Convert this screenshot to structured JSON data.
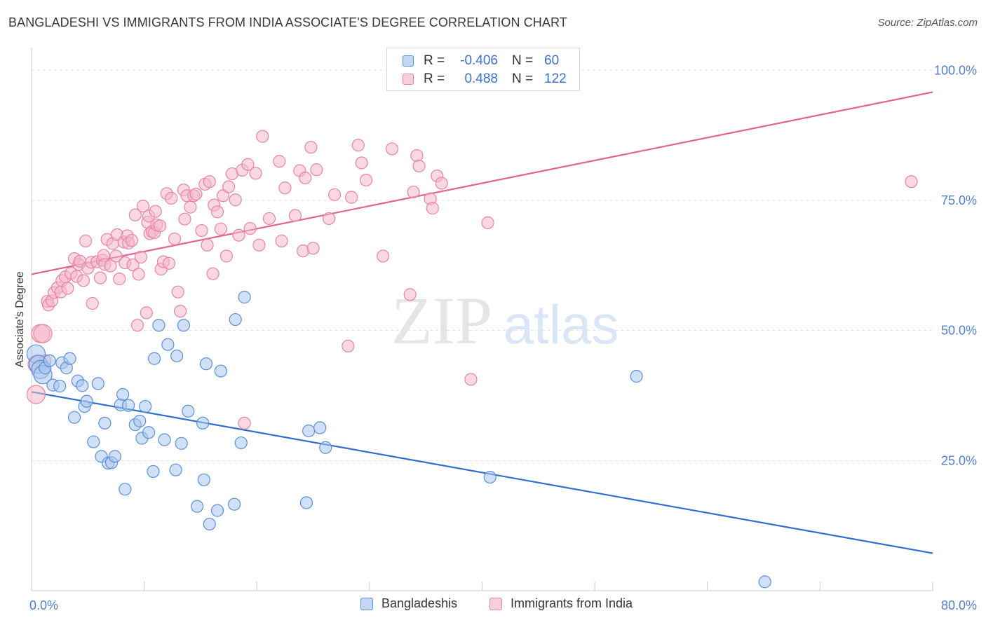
{
  "title": "BANGLADESHI VS IMMIGRANTS FROM INDIA ASSOCIATE'S DEGREE CORRELATION CHART",
  "source": "Source: ZipAtlas.com",
  "watermark": {
    "zip": "ZIP",
    "atlas": "atlas"
  },
  "colors": {
    "blue_fill": "#a9c6ee",
    "blue_stroke": "#5b8fd6",
    "blue_line": "#2f6fcc",
    "pink_fill": "#f4b8cb",
    "pink_stroke": "#e684a3",
    "pink_line": "#e0638e",
    "tick": "#4f7fc9",
    "grid": "#dde1e6"
  },
  "legend": {
    "rows": [
      {
        "r_label": "R =",
        "r_value": "-0.406",
        "n_label": "N =",
        "n_value": "60"
      },
      {
        "r_label": "R =",
        "r_value": "0.488",
        "n_label": "N =",
        "n_value": "122"
      }
    ]
  },
  "bottom_legend": [
    "Bangladeshis",
    "Immigrants from India"
  ],
  "chart_data": {
    "type": "scatter",
    "xlabel": "",
    "ylabel": "Associate's Degree",
    "xlim": [
      0,
      80
    ],
    "ylim": [
      0,
      103
    ],
    "x_tick_labels": [
      {
        "value": 0,
        "label": "0.0%"
      },
      {
        "value": 80,
        "label": "80.0%"
      }
    ],
    "y_tick_labels": [
      {
        "value": 25,
        "label": "25.0%"
      },
      {
        "value": 50,
        "label": "50.0%"
      },
      {
        "value": 75,
        "label": "75.0%"
      },
      {
        "value": 100,
        "label": "100.0%"
      }
    ],
    "grid": true,
    "legend_position": "top-center",
    "series": [
      {
        "name": "Bangladeshis",
        "color": "#5b8fd6",
        "trend": {
          "x": [
            0,
            80
          ],
          "y": [
            38.2,
            7.2
          ]
        },
        "points": [
          [
            0.4,
            45.5
          ],
          [
            0.6,
            43.5
          ],
          [
            0.8,
            42.5
          ],
          [
            1.0,
            41.5
          ],
          [
            1.2,
            42.8
          ],
          [
            1.6,
            44.2
          ],
          [
            1.9,
            39.5
          ],
          [
            2.5,
            39.3
          ],
          [
            2.7,
            43.8
          ],
          [
            3.1,
            42.8
          ],
          [
            3.4,
            44.6
          ],
          [
            3.8,
            33.3
          ],
          [
            4.1,
            40.3
          ],
          [
            4.5,
            39.4
          ],
          [
            4.7,
            35.4
          ],
          [
            4.9,
            36.4
          ],
          [
            5.5,
            28.6
          ],
          [
            5.9,
            39.8
          ],
          [
            6.2,
            25.8
          ],
          [
            6.5,
            32.2
          ],
          [
            6.8,
            24.5
          ],
          [
            7.1,
            24.6
          ],
          [
            7.4,
            25.8
          ],
          [
            7.9,
            35.7
          ],
          [
            8.1,
            37.7
          ],
          [
            8.3,
            19.5
          ],
          [
            8.6,
            35.6
          ],
          [
            9.2,
            31.9
          ],
          [
            9.6,
            32.6
          ],
          [
            9.8,
            29.3
          ],
          [
            10.1,
            35.4
          ],
          [
            10.4,
            30.4
          ],
          [
            10.8,
            22.9
          ],
          [
            10.9,
            44.6
          ],
          [
            11.3,
            51.0
          ],
          [
            11.8,
            29.0
          ],
          [
            12.1,
            47.3
          ],
          [
            12.8,
            23.2
          ],
          [
            12.9,
            45.1
          ],
          [
            13.3,
            28.3
          ],
          [
            13.5,
            51.0
          ],
          [
            13.9,
            34.5
          ],
          [
            14.7,
            16.2
          ],
          [
            15.2,
            32.2
          ],
          [
            15.3,
            21.3
          ],
          [
            15.5,
            43.6
          ],
          [
            15.8,
            12.8
          ],
          [
            16.5,
            15.4
          ],
          [
            16.8,
            42.2
          ],
          [
            18.0,
            16.6
          ],
          [
            18.1,
            52.1
          ],
          [
            18.6,
            28.4
          ],
          [
            18.9,
            56.4
          ],
          [
            24.4,
            16.9
          ],
          [
            24.6,
            30.7
          ],
          [
            25.6,
            31.3
          ],
          [
            26.1,
            27.5
          ],
          [
            40.7,
            21.8
          ],
          [
            53.7,
            41.2
          ],
          [
            65.1,
            1.7
          ]
        ]
      },
      {
        "name": "Immigrants from India",
        "color": "#e684a3",
        "trend": {
          "x": [
            0,
            80
          ],
          "y": [
            60.8,
            95.8
          ]
        },
        "points": [
          [
            0.4,
            37.7
          ],
          [
            0.5,
            43.5
          ],
          [
            0.8,
            49.4
          ],
          [
            1.0,
            49.4
          ],
          [
            1.2,
            44.2
          ],
          [
            1.4,
            55.6
          ],
          [
            1.5,
            54.9
          ],
          [
            1.8,
            55.7
          ],
          [
            2.0,
            57.3
          ],
          [
            2.3,
            58.2
          ],
          [
            2.6,
            57.4
          ],
          [
            2.7,
            59.6
          ],
          [
            3.0,
            60.3
          ],
          [
            3.2,
            58.1
          ],
          [
            3.5,
            61.0
          ],
          [
            3.8,
            63.8
          ],
          [
            4.0,
            60.4
          ],
          [
            4.2,
            62.7
          ],
          [
            4.3,
            63.3
          ],
          [
            4.6,
            59.6
          ],
          [
            4.8,
            67.2
          ],
          [
            5.0,
            62.0
          ],
          [
            5.3,
            63.1
          ],
          [
            5.4,
            55.2
          ],
          [
            5.8,
            63.2
          ],
          [
            6.1,
            60.1
          ],
          [
            6.3,
            63.5
          ],
          [
            6.4,
            64.4
          ],
          [
            6.5,
            62.7
          ],
          [
            6.7,
            67.5
          ],
          [
            7.0,
            62.4
          ],
          [
            7.2,
            66.7
          ],
          [
            7.5,
            64.3
          ],
          [
            7.6,
            68.4
          ],
          [
            7.8,
            59.9
          ],
          [
            8.2,
            67.0
          ],
          [
            8.3,
            63.0
          ],
          [
            8.5,
            68.2
          ],
          [
            8.6,
            66.8
          ],
          [
            8.9,
            67.3
          ],
          [
            9.0,
            62.6
          ],
          [
            9.2,
            72.2
          ],
          [
            9.4,
            51.0
          ],
          [
            9.5,
            60.8
          ],
          [
            9.7,
            64.1
          ],
          [
            9.9,
            73.9
          ],
          [
            10.2,
            53.4
          ],
          [
            10.3,
            70.8
          ],
          [
            10.4,
            72.0
          ],
          [
            10.5,
            68.6
          ],
          [
            10.7,
            69.0
          ],
          [
            10.9,
            68.8
          ],
          [
            11.0,
            72.9
          ],
          [
            11.1,
            70.3
          ],
          [
            11.4,
            70.1
          ],
          [
            11.5,
            61.8
          ],
          [
            11.7,
            63.2
          ],
          [
            12.0,
            76.3
          ],
          [
            12.2,
            62.9
          ],
          [
            12.4,
            75.4
          ],
          [
            12.7,
            67.6
          ],
          [
            13.0,
            57.4
          ],
          [
            13.2,
            53.7
          ],
          [
            13.5,
            77.0
          ],
          [
            13.6,
            71.4
          ],
          [
            13.8,
            75.9
          ],
          [
            14.1,
            73.7
          ],
          [
            14.4,
            75.9
          ],
          [
            14.6,
            76.2
          ],
          [
            15.1,
            69.2
          ],
          [
            15.4,
            78.1
          ],
          [
            15.6,
            66.4
          ],
          [
            15.8,
            78.6
          ],
          [
            16.1,
            60.9
          ],
          [
            16.2,
            74.1
          ],
          [
            16.5,
            72.8
          ],
          [
            16.8,
            69.5
          ],
          [
            17.0,
            75.9
          ],
          [
            17.3,
            64.3
          ],
          [
            17.5,
            77.6
          ],
          [
            17.8,
            80.1
          ],
          [
            18.1,
            75.1
          ],
          [
            18.4,
            68.3
          ],
          [
            18.7,
            80.8
          ],
          [
            18.9,
            32.2
          ],
          [
            19.2,
            81.9
          ],
          [
            19.4,
            69.6
          ],
          [
            19.9,
            80.2
          ],
          [
            20.2,
            66.4
          ],
          [
            20.5,
            87.3
          ],
          [
            21.1,
            71.5
          ],
          [
            22.0,
            82.5
          ],
          [
            22.2,
            67.2
          ],
          [
            22.5,
            77.4
          ],
          [
            23.4,
            72.1
          ],
          [
            23.8,
            80.7
          ],
          [
            24.1,
            65.3
          ],
          [
            24.3,
            79.3
          ],
          [
            24.8,
            85.2
          ],
          [
            25.0,
            65.8
          ],
          [
            25.3,
            80.9
          ],
          [
            26.4,
            71.5
          ],
          [
            26.9,
            76.1
          ],
          [
            28.1,
            47.0
          ],
          [
            28.4,
            75.6
          ],
          [
            29.0,
            85.6
          ],
          [
            29.3,
            82.2
          ],
          [
            29.7,
            78.9
          ],
          [
            31.2,
            64.3
          ],
          [
            32.0,
            84.9
          ],
          [
            33.6,
            56.9
          ],
          [
            33.9,
            76.6
          ],
          [
            34.2,
            83.6
          ],
          [
            34.4,
            81.6
          ],
          [
            35.4,
            75.3
          ],
          [
            35.6,
            73.5
          ],
          [
            36.0,
            79.7
          ],
          [
            36.4,
            78.3
          ],
          [
            39.0,
            40.6
          ],
          [
            40.5,
            70.7
          ],
          [
            78.1,
            78.6
          ]
        ]
      }
    ]
  }
}
